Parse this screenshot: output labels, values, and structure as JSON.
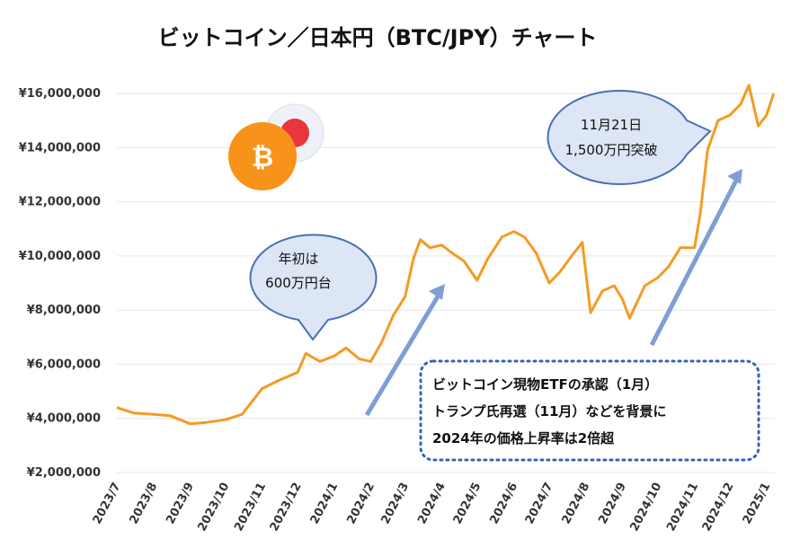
{
  "title": "ビットコイン／日本円（BTC/JPY）チャート",
  "colors": {
    "line": "#f59a23",
    "bubble_fill": "#dde6f4",
    "bubble_stroke": "#4a6fb5",
    "arrow": "#7f9ed6",
    "note_border": "#3a62b8",
    "grid": "#e6e6e6",
    "bitcoin": "#f7931a",
    "yen_circle": "#e8363c"
  },
  "icons": [
    "bitcoin-icon",
    "yen-flag-icon"
  ],
  "bubbles": {
    "early": {
      "line1": "年初は",
      "line2": "600万円台"
    },
    "breakout": {
      "line1": "11月21日",
      "line2": "1,500万円突破"
    }
  },
  "note": {
    "line1": "ビットコイン現物ETFの承認（1月）",
    "line2": "トランプ氏再選（11月）などを背景に",
    "line3": "2024年の価格上昇率は2倍超"
  },
  "chart_data": {
    "type": "line",
    "title": "ビットコイン／日本円（BTC/JPY）チャート",
    "xlabel": "",
    "ylabel": "",
    "ylim": [
      2000000,
      16000000
    ],
    "grid": true,
    "y_ticks": [
      "¥2,000,000",
      "¥4,000,000",
      "¥6,000,000",
      "¥8,000,000",
      "¥10,000,000",
      "¥12,000,000",
      "¥14,000,000",
      "¥16,000,000"
    ],
    "y_tick_values": [
      2000000,
      4000000,
      6000000,
      8000000,
      10000000,
      12000000,
      14000000,
      16000000
    ],
    "categories": [
      "2023/7",
      "2023/8",
      "2023/9",
      "2023/10",
      "2023/11",
      "2023/12",
      "2024/1",
      "2024/2",
      "2024/3",
      "2024/4",
      "2024/5",
      "2024/6",
      "2024/7",
      "2024/8",
      "2024/9",
      "2024/10",
      "2024/11",
      "2024/12",
      "2025/1"
    ],
    "series": [
      {
        "x": [
          "2023/7/1",
          "2023/7/15",
          "2023/8/1",
          "2023/8/15",
          "2023/9/1",
          "2023/9/15",
          "2023/10/1",
          "2023/10/15",
          "2023/11/1",
          "2023/11/15",
          "2023/12/1",
          "2023/12/8",
          "2023/12/20",
          "2024/1/1",
          "2024/1/11",
          "2024/1/22",
          "2024/2/1",
          "2024/2/10",
          "2024/2/20",
          "2024/3/1",
          "2024/3/8",
          "2024/3/14",
          "2024/3/22",
          "2024/4/1",
          "2024/4/10",
          "2024/4/20",
          "2024/5/1",
          "2024/5/10",
          "2024/5/22",
          "2024/6/1",
          "2024/6/10",
          "2024/6/20",
          "2024/7/1",
          "2024/7/10",
          "2024/7/20",
          "2024/7/29",
          "2024/8/5",
          "2024/8/15",
          "2024/8/25",
          "2024/9/1",
          "2024/9/7",
          "2024/9/20",
          "2024/10/1",
          "2024/10/10",
          "2024/10/20",
          "2024/11/1",
          "2024/11/6",
          "2024/11/12",
          "2024/11/21",
          "2024/12/1",
          "2024/12/10",
          "2024/12/17",
          "2024/12/25",
          "2025/1/1",
          "2025/1/7"
        ],
        "values": [
          4400000,
          4200000,
          4150000,
          4100000,
          3800000,
          3850000,
          3950000,
          4150000,
          5100000,
          5400000,
          5700000,
          6400000,
          6100000,
          6300000,
          6600000,
          6200000,
          6100000,
          6800000,
          7800000,
          8500000,
          9900000,
          10600000,
          10300000,
          10400000,
          10100000,
          9800000,
          9100000,
          9900000,
          10700000,
          10900000,
          10700000,
          10100000,
          9000000,
          9400000,
          10000000,
          10500000,
          7900000,
          8700000,
          8900000,
          8400000,
          7700000,
          8900000,
          9200000,
          9600000,
          10300000,
          10300000,
          11600000,
          13900000,
          15000000,
          15200000,
          15600000,
          16300000,
          14800000,
          15200000,
          16000000
        ]
      }
    ]
  }
}
